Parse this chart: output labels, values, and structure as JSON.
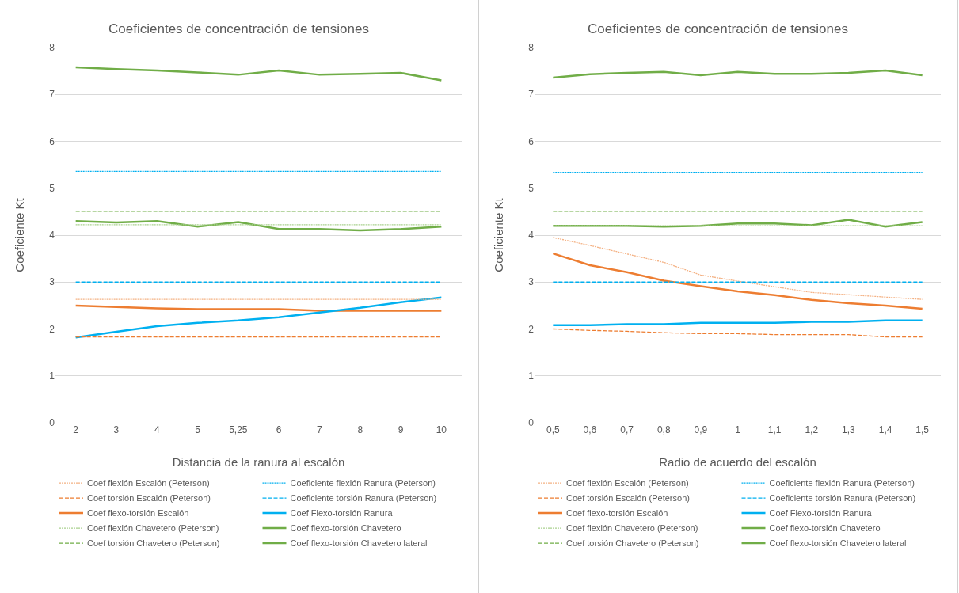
{
  "chart_data": [
    {
      "type": "line",
      "title": "Coeficientes de concentración de tensiones",
      "xlabel": "Distancia de la ranura al escalón",
      "ylabel": "Coeficiente Kt",
      "categories": [
        "2",
        "3",
        "4",
        "5",
        "5,25",
        "6",
        "7",
        "8",
        "9",
        "10"
      ],
      "ylim": [
        0,
        8
      ],
      "yticks": [
        0,
        1,
        2,
        3,
        4,
        5,
        6,
        7,
        8
      ],
      "grid": "y",
      "legend": "bottom",
      "marker": "none",
      "series": [
        {
          "name": "Coef flexión Escalón (Peterson)",
          "color": "#f4b183",
          "line_style": "dotted",
          "values": [
            2.63,
            2.63,
            2.63,
            2.63,
            2.63,
            2.63,
            2.63,
            2.63,
            2.63,
            2.63
          ]
        },
        {
          "name": "Coeficiente flexión Ranura (Peterson)",
          "color": "#00b0f0",
          "line_style": "dotted",
          "values": [
            5.36,
            5.36,
            5.36,
            5.36,
            5.36,
            5.36,
            5.36,
            5.36,
            5.36,
            5.36
          ]
        },
        {
          "name": "Coef torsión Escalón (Peterson)",
          "color": "#ed7d31",
          "line_style": "dashed",
          "values": [
            1.83,
            1.83,
            1.83,
            1.83,
            1.83,
            1.83,
            1.83,
            1.83,
            1.83,
            1.83
          ]
        },
        {
          "name": "Coeficiente torsión Ranura (Peterson)",
          "color": "#00b0f0",
          "line_style": "dashed",
          "values": [
            3.0,
            3.0,
            3.0,
            3.0,
            3.0,
            3.0,
            3.0,
            3.0,
            3.0,
            3.0
          ]
        },
        {
          "name": "Coef flexo-torsión Escalón",
          "color": "#ed7d31",
          "line_style": "solid",
          "values": [
            2.5,
            2.47,
            2.44,
            2.42,
            2.42,
            2.42,
            2.39,
            2.39,
            2.39,
            2.39
          ]
        },
        {
          "name": "Coef Flexo-torsión Ranura",
          "color": "#00b0f0",
          "line_style": "solid",
          "values": [
            1.82,
            1.94,
            2.06,
            2.13,
            2.18,
            2.25,
            2.35,
            2.45,
            2.57,
            2.67
          ]
        },
        {
          "name": "Coef flexión Chavetero (Peterson)",
          "color": "#a9d18e",
          "line_style": "dotted",
          "values": [
            4.22,
            4.22,
            4.22,
            4.22,
            4.22,
            4.22,
            4.22,
            4.22,
            4.22,
            4.22
          ]
        },
        {
          "name": "Coef flexo-torsión Chavetero",
          "color": "#70ad47",
          "line_style": "solid",
          "values": [
            4.3,
            4.27,
            4.3,
            4.18,
            4.28,
            4.13,
            4.13,
            4.1,
            4.13,
            4.18
          ]
        },
        {
          "name": "Coef torsión Chavetero (Peterson)",
          "color": "#70ad47",
          "line_style": "dashed",
          "values": [
            4.51,
            4.51,
            4.51,
            4.51,
            4.51,
            4.51,
            4.51,
            4.51,
            4.51,
            4.51
          ]
        },
        {
          "name": "Coef flexo-torsión Chavetero lateral",
          "color": "#70ad47",
          "line_style": "solid",
          "values": [
            7.58,
            7.54,
            7.51,
            7.47,
            7.42,
            7.51,
            7.42,
            7.44,
            7.46,
            7.3
          ]
        }
      ]
    },
    {
      "type": "line",
      "title": "Coeficientes de concentración de tensiones",
      "xlabel": "Radio de acuerdo del escalón",
      "ylabel": "Coeficiente Kt",
      "categories": [
        "0,5",
        "0,6",
        "0,7",
        "0,8",
        "0,9",
        "1",
        "1,1",
        "1,2",
        "1,3",
        "1,4",
        "1,5"
      ],
      "ylim": [
        0,
        8
      ],
      "yticks": [
        0,
        1,
        2,
        3,
        4,
        5,
        6,
        7,
        8
      ],
      "grid": "y",
      "legend": "bottom",
      "marker": "none",
      "series": [
        {
          "name": "Coef flexión Escalón (Peterson)",
          "color": "#f4b183",
          "line_style": "dotted",
          "values": [
            3.95,
            3.78,
            3.6,
            3.42,
            3.15,
            3.02,
            2.9,
            2.78,
            2.73,
            2.68,
            2.63
          ]
        },
        {
          "name": "Coeficiente flexión Ranura (Peterson)",
          "color": "#00b0f0",
          "line_style": "dotted",
          "values": [
            5.34,
            5.34,
            5.34,
            5.34,
            5.34,
            5.34,
            5.34,
            5.34,
            5.34,
            5.34,
            5.34
          ]
        },
        {
          "name": "Coef torsión Escalón (Peterson)",
          "color": "#ed7d31",
          "line_style": "dashed",
          "values": [
            2.0,
            1.97,
            1.95,
            1.92,
            1.9,
            1.9,
            1.88,
            1.88,
            1.88,
            1.83,
            1.83
          ]
        },
        {
          "name": "Coeficiente torsión Ranura (Peterson)",
          "color": "#00b0f0",
          "line_style": "dashed",
          "values": [
            3.0,
            3.0,
            3.0,
            3.0,
            3.0,
            3.0,
            3.0,
            3.0,
            3.0,
            3.0,
            3.0
          ]
        },
        {
          "name": "Coef flexo-torsión Escalón",
          "color": "#ed7d31",
          "line_style": "solid",
          "values": [
            3.61,
            3.36,
            3.21,
            3.03,
            2.91,
            2.8,
            2.72,
            2.62,
            2.55,
            2.5,
            2.43
          ]
        },
        {
          "name": "Coef Flexo-torsión Ranura",
          "color": "#00b0f0",
          "line_style": "solid",
          "values": [
            2.08,
            2.08,
            2.1,
            2.1,
            2.13,
            2.13,
            2.13,
            2.15,
            2.15,
            2.18,
            2.18
          ]
        },
        {
          "name": "Coef flexión Chavetero (Peterson)",
          "color": "#a9d18e",
          "line_style": "dotted",
          "values": [
            4.2,
            4.2,
            4.2,
            4.2,
            4.2,
            4.2,
            4.2,
            4.2,
            4.2,
            4.2,
            4.2
          ]
        },
        {
          "name": "Coef flexo-torsión Chavetero",
          "color": "#70ad47",
          "line_style": "solid",
          "values": [
            4.2,
            4.2,
            4.2,
            4.18,
            4.2,
            4.25,
            4.25,
            4.21,
            4.33,
            4.18,
            4.28
          ]
        },
        {
          "name": "Coef torsión Chavetero (Peterson)",
          "color": "#70ad47",
          "line_style": "dashed",
          "values": [
            4.51,
            4.51,
            4.51,
            4.51,
            4.51,
            4.51,
            4.51,
            4.51,
            4.51,
            4.51,
            4.51
          ]
        },
        {
          "name": "Coef flexo-torsión Chavetero lateral",
          "color": "#70ad47",
          "line_style": "solid",
          "values": [
            7.36,
            7.43,
            7.46,
            7.48,
            7.41,
            7.48,
            7.44,
            7.44,
            7.46,
            7.51,
            7.41
          ]
        }
      ]
    }
  ]
}
